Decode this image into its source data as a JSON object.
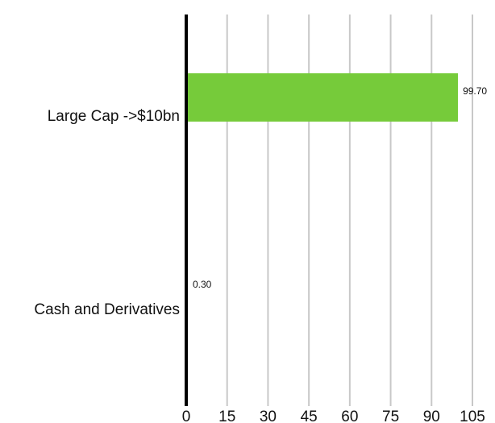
{
  "chart_data": {
    "type": "bar",
    "orientation": "horizontal",
    "categories": [
      "Large Cap ->$10bn",
      "Cash and Derivatives"
    ],
    "values": [
      99.7,
      0.3
    ],
    "value_labels": [
      "99.70",
      "0.30"
    ],
    "xlim": [
      0,
      105
    ],
    "x_ticks": [
      0,
      15,
      30,
      45,
      60,
      75,
      90,
      105
    ],
    "x_tick_labels": [
      "0",
      "15",
      "30",
      "45",
      "60",
      "75",
      "90",
      "105"
    ],
    "grid": "vertical",
    "bar_color": "#76cb3a",
    "title": "",
    "xlabel": "",
    "ylabel": ""
  }
}
